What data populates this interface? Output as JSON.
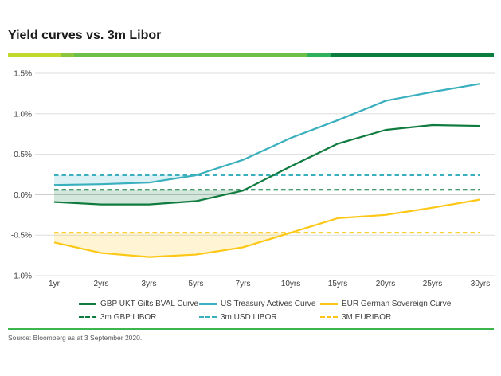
{
  "page": {
    "title": "Yield curves vs. 3m Libor",
    "source": "Source: Bloomberg as at 3 September 2020."
  },
  "accent_bar": {
    "segments": [
      {
        "color": "#c1d82f",
        "until_pct": 11
      },
      {
        "color": "#8cc63f",
        "until_pct": 13.6
      },
      {
        "color": "#6cbf47",
        "until_pct": 61.5
      },
      {
        "color": "#2eb05c",
        "until_pct": 66.5
      },
      {
        "color": "#0b7d3e",
        "until_pct": 100
      }
    ]
  },
  "separator_color": "#3cb54a",
  "chart_data": {
    "type": "line",
    "title": "Yield curves vs. 3m Libor",
    "categories": [
      "1yr",
      "2yrs",
      "3yrs",
      "5yrs",
      "7yrs",
      "10yrs",
      "15yrs",
      "20yrs",
      "25yrs",
      "30yrs"
    ],
    "xlabel": "",
    "ylabel": "",
    "ylim": [
      -1.0,
      1.5
    ],
    "yticks": [
      1.5,
      1.0,
      0.5,
      0.0,
      -0.5,
      -1.0
    ],
    "ytick_labels": [
      "1.5%",
      "1.0%",
      "0.5%",
      "0.0%",
      "-0.5%",
      "-1.0%"
    ],
    "grid": true,
    "legend_position": "bottom",
    "series": [
      {
        "name": "GBP UKT Gilts BVAL Curve",
        "kind": "line",
        "style": "solid",
        "color": "#0f7b3f",
        "values": [
          -0.09,
          -0.12,
          -0.12,
          -0.08,
          0.05,
          0.35,
          0.63,
          0.8,
          0.86,
          0.85
        ]
      },
      {
        "name": "US Treasury Actives Curve",
        "kind": "line",
        "style": "solid",
        "color": "#3aafbd",
        "values": [
          0.12,
          0.13,
          0.15,
          0.24,
          0.43,
          0.7,
          0.92,
          1.16,
          1.27,
          1.37
        ]
      },
      {
        "name": "EUR German Sovereign Curve",
        "kind": "line",
        "style": "solid",
        "color": "#fdc716",
        "values": [
          -0.59,
          -0.72,
          -0.77,
          -0.74,
          -0.65,
          -0.47,
          -0.29,
          -0.25,
          -0.16,
          -0.06
        ]
      },
      {
        "name": "3m GBP LIBOR",
        "kind": "hline",
        "style": "dashed",
        "color": "#0f7b3f",
        "value": 0.06
      },
      {
        "name": "3m USD LIBOR",
        "kind": "hline",
        "style": "dashed",
        "color": "#3aafbd",
        "value": 0.24
      },
      {
        "name": "3M EURIBOR",
        "kind": "hline",
        "style": "dashed",
        "color": "#fdc716",
        "value": -0.47
      }
    ],
    "spread_fill": {
      "enabled": true,
      "opacity": 0.18,
      "note": "shaded area between each sovereign curve and its matching 3m rate where the curve sits below the rate"
    }
  }
}
